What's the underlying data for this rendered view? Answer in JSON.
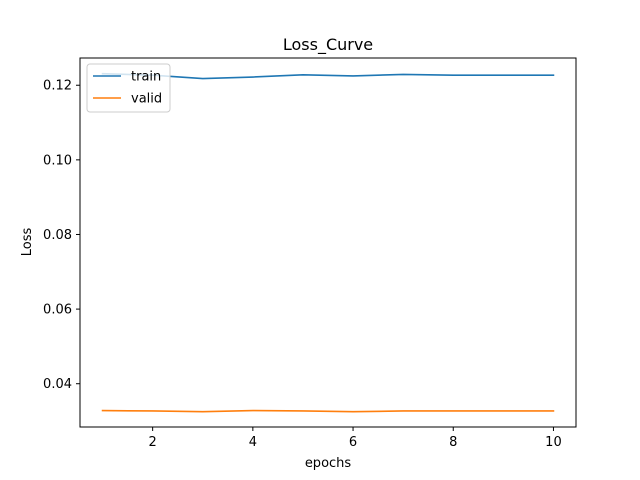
{
  "chart_data": {
    "type": "line",
    "title": "Loss_Curve",
    "xlabel": "epochs",
    "ylabel": "Loss",
    "xlim": [
      0.55,
      10.45
    ],
    "ylim": [
      0.0284,
      0.1273
    ],
    "xticks": [
      2,
      4,
      6,
      8,
      10
    ],
    "xtick_labels": [
      "2",
      "4",
      "6",
      "8",
      "10"
    ],
    "yticks": [
      0.04,
      0.06,
      0.08,
      0.1,
      0.12
    ],
    "ytick_labels": [
      "0.04",
      "0.06",
      "0.08",
      "0.10",
      "0.12"
    ],
    "grid": false,
    "legend_position": "upper-left",
    "x": [
      1,
      2,
      3,
      4,
      5,
      6,
      7,
      8,
      9,
      10
    ],
    "series": [
      {
        "name": "train",
        "color": "#1f77b4",
        "values": [
          0.1231,
          0.1227,
          0.1218,
          0.1222,
          0.1228,
          0.1225,
          0.1229,
          0.1227,
          0.1227,
          0.1227
        ]
      },
      {
        "name": "valid",
        "color": "#ff7f0e",
        "values": [
          0.0328,
          0.0327,
          0.0325,
          0.0328,
          0.0327,
          0.0325,
          0.0327,
          0.0327,
          0.0327,
          0.0327
        ]
      }
    ]
  }
}
